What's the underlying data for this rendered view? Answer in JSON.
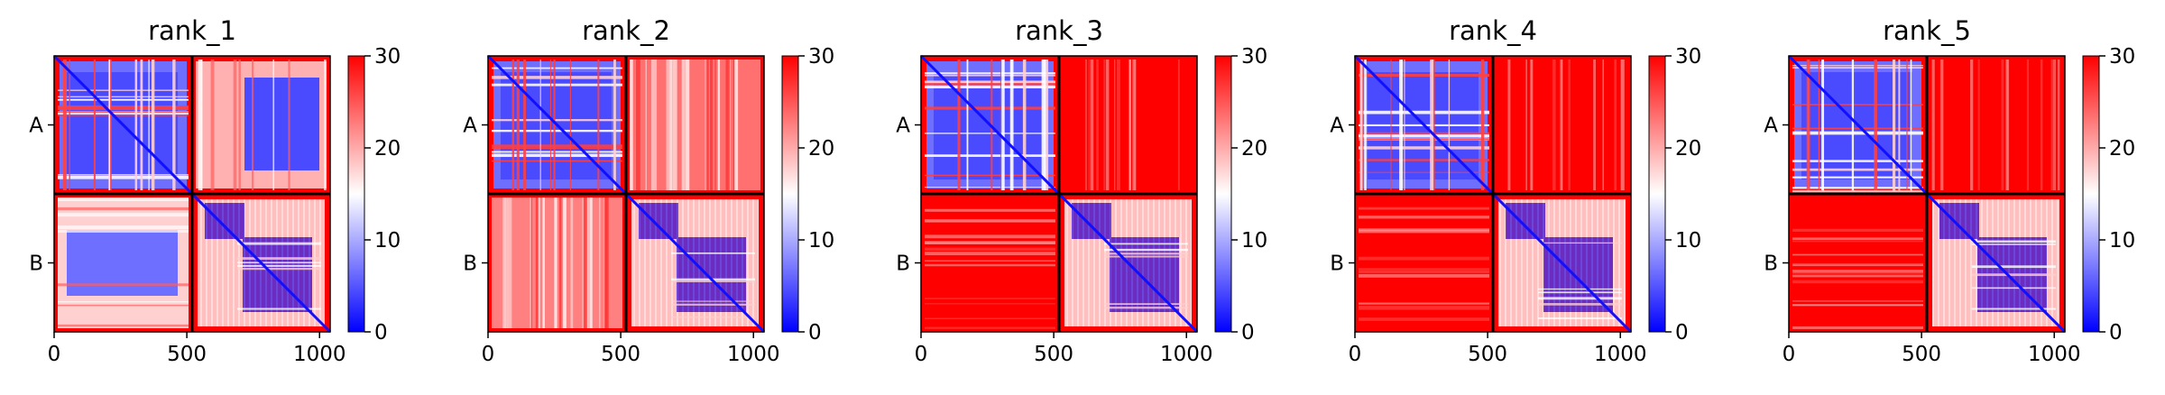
{
  "chart_data": [
    {
      "type": "heatmap",
      "title": "rank_1",
      "x_ticks": [
        0,
        500,
        1000
      ],
      "y_ticks": [
        "A",
        "B"
      ],
      "chain_boundary": 520,
      "length": 1040,
      "colorbar": {
        "min": 0,
        "max": 30,
        "ticks": [
          0,
          10,
          20,
          30
        ],
        "colors": [
          "#0000ff",
          "#ffffff",
          "#ff0000"
        ]
      },
      "blocks": {
        "AA": "low",
        "AB": "mixed",
        "BA": "mixed",
        "BB": "low"
      }
    },
    {
      "type": "heatmap",
      "title": "rank_2",
      "x_ticks": [
        0,
        500,
        1000
      ],
      "y_ticks": [
        "A",
        "B"
      ],
      "chain_boundary": 520,
      "length": 1040,
      "colorbar": {
        "min": 0,
        "max": 30,
        "ticks": [
          0,
          10,
          20,
          30
        ],
        "colors": [
          "#0000ff",
          "#ffffff",
          "#ff0000"
        ]
      },
      "blocks": {
        "AA": "low",
        "AB": "high-mixed",
        "BA": "high-mixed",
        "BB": "low"
      }
    },
    {
      "type": "heatmap",
      "title": "rank_3",
      "x_ticks": [
        0,
        500,
        1000
      ],
      "y_ticks": [
        "A",
        "B"
      ],
      "chain_boundary": 520,
      "length": 1040,
      "colorbar": {
        "min": 0,
        "max": 30,
        "ticks": [
          0,
          10,
          20,
          30
        ],
        "colors": [
          "#0000ff",
          "#ffffff",
          "#ff0000"
        ]
      },
      "blocks": {
        "AA": "low",
        "AB": "high",
        "BA": "high",
        "BB": "low"
      }
    },
    {
      "type": "heatmap",
      "title": "rank_4",
      "x_ticks": [
        0,
        500,
        1000
      ],
      "y_ticks": [
        "A",
        "B"
      ],
      "chain_boundary": 520,
      "length": 1040,
      "colorbar": {
        "min": 0,
        "max": 30,
        "ticks": [
          0,
          10,
          20,
          30
        ],
        "colors": [
          "#0000ff",
          "#ffffff",
          "#ff0000"
        ]
      },
      "blocks": {
        "AA": "low",
        "AB": "high",
        "BA": "high",
        "BB": "low"
      }
    },
    {
      "type": "heatmap",
      "title": "rank_5",
      "x_ticks": [
        0,
        500,
        1000
      ],
      "y_ticks": [
        "A",
        "B"
      ],
      "chain_boundary": 520,
      "length": 1040,
      "colorbar": {
        "min": 0,
        "max": 30,
        "ticks": [
          0,
          10,
          20,
          30
        ],
        "colors": [
          "#0000ff",
          "#ffffff",
          "#ff0000"
        ]
      },
      "blocks": {
        "AA": "low",
        "AB": "high",
        "BA": "high",
        "BB": "low"
      }
    }
  ]
}
